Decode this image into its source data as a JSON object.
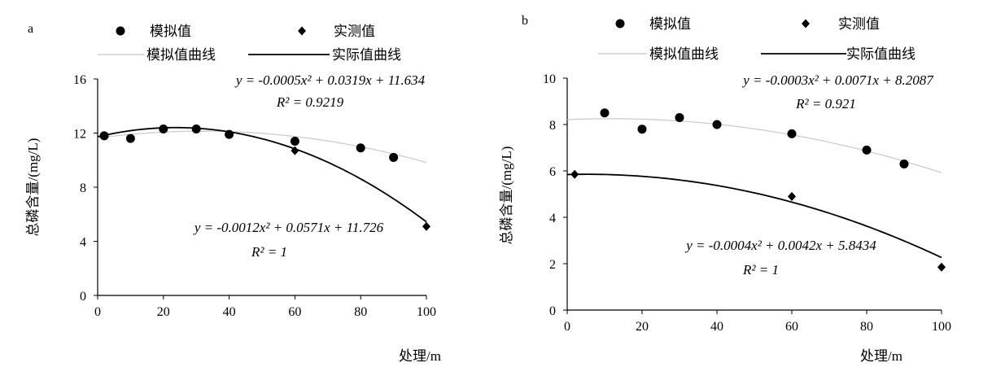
{
  "chart_data": [
    {
      "panel": "a",
      "type": "scatter",
      "ylabel": "总磷含量/(mg/L)",
      "xlabel": "处理/m",
      "xlim": [
        0,
        100
      ],
      "ylim": [
        0,
        16
      ],
      "xticks": [
        0,
        20,
        40,
        60,
        80,
        100
      ],
      "yticks": [
        0,
        4,
        8,
        12,
        16
      ],
      "grid": false,
      "legend_position": "top",
      "legend": {
        "simulated": "模拟值",
        "measured": "实测值",
        "simulated_curve": "模拟值曲线",
        "measured_curve": "实际值曲线"
      },
      "series": [
        {
          "name": "模拟值",
          "marker": "circle",
          "x": [
            2,
            10,
            20,
            30,
            40,
            60,
            80,
            90
          ],
          "y": [
            11.8,
            11.6,
            12.3,
            12.3,
            11.9,
            11.4,
            10.9,
            10.2
          ]
        },
        {
          "name": "实测值",
          "marker": "diamond",
          "x": [
            2,
            60,
            100
          ],
          "y": [
            11.8,
            10.7,
            5.1
          ]
        }
      ],
      "fits": [
        {
          "name": "模拟值曲线",
          "coef": [
            -0.0005,
            0.0319,
            11.634
          ],
          "equation": "y = -0.0005x² + 0.0319x + 11.634",
          "r2": "R² = 0.9219"
        },
        {
          "name": "实际值曲线",
          "coef": [
            -0.0012,
            0.0571,
            11.726
          ],
          "equation": "y = -0.0012x² + 0.0571x + 11.726",
          "r2": "R² = 1"
        }
      ]
    },
    {
      "panel": "b",
      "type": "scatter",
      "ylabel": "总磷含量/(mg/L)",
      "xlabel": "处理/m",
      "xlim": [
        0,
        100
      ],
      "ylim": [
        0,
        10
      ],
      "xticks": [
        0,
        20,
        40,
        60,
        80,
        100
      ],
      "yticks": [
        0,
        2,
        4,
        6,
        8,
        10
      ],
      "grid": false,
      "legend_position": "top",
      "legend": {
        "simulated": "模拟值",
        "measured": "实测值",
        "simulated_curve": "模拟值曲线",
        "measured_curve": "实际值曲线"
      },
      "series": [
        {
          "name": "模拟值",
          "marker": "circle",
          "x": [
            10,
            20,
            30,
            40,
            60,
            80,
            90
          ],
          "y": [
            8.5,
            7.8,
            8.3,
            8.0,
            7.6,
            6.9,
            6.3
          ]
        },
        {
          "name": "实测值",
          "marker": "diamond",
          "x": [
            2,
            60,
            100
          ],
          "y": [
            5.85,
            4.9,
            1.85
          ]
        }
      ],
      "fits": [
        {
          "name": "模拟值曲线",
          "coef": [
            -0.0003,
            0.0071,
            8.2087
          ],
          "equation": "y = -0.0003x² + 0.0071x + 8.2087",
          "r2": "R² = 0.921"
        },
        {
          "name": "实际值曲线",
          "coef": [
            -0.0004,
            0.0042,
            5.8434
          ],
          "equation": "y = -0.0004x² + 0.0042x + 5.8434",
          "r2": "R² = 1"
        }
      ]
    }
  ]
}
